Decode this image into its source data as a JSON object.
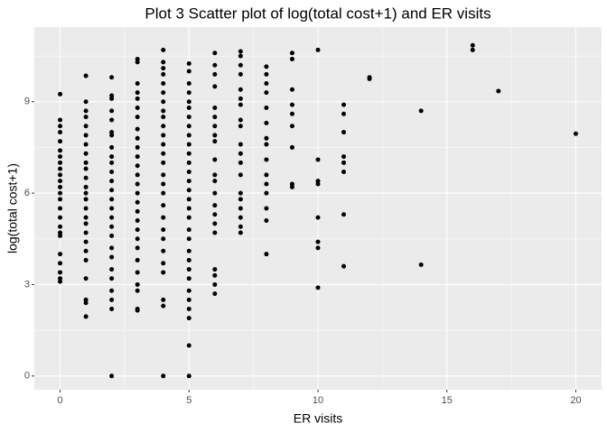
{
  "chart_data": {
    "type": "scatter",
    "title": "Plot 3  Scatter plot of log(total cost+1) and ER visits",
    "x_label": "ER visits",
    "y_label": "log(total cost+1)",
    "color": "#000000",
    "panel_color": "#EBEBEB",
    "grid": true,
    "xlim": [
      -1,
      21
    ],
    "ylim": [
      -0.45,
      11.45
    ],
    "xticks": [
      0,
      5,
      10,
      15,
      20
    ],
    "yticks": [
      0,
      3,
      6,
      9
    ],
    "x_minor_ticks": [
      2.5,
      7.5,
      12.5,
      17.5
    ],
    "y_minor_ticks": [
      1.5,
      4.5,
      7.5,
      10.5
    ],
    "x": [
      0,
      0,
      0,
      0,
      0,
      0,
      0,
      0,
      0,
      0,
      0,
      0,
      0,
      0,
      0,
      0,
      0,
      0,
      0,
      0,
      0,
      0,
      0,
      0,
      1,
      1,
      1,
      1,
      1,
      1,
      1,
      1,
      1,
      1,
      1,
      1,
      1,
      1,
      1,
      1,
      1,
      1,
      1,
      1,
      1,
      1,
      1,
      1,
      1,
      2,
      2,
      2,
      2,
      2,
      2,
      2,
      2,
      2,
      2,
      2,
      2,
      2,
      2,
      2,
      2,
      2,
      2,
      2,
      2,
      2,
      2,
      2,
      2,
      2,
      2,
      3,
      3,
      3,
      3,
      3,
      3,
      3,
      3,
      3,
      3,
      3,
      3,
      3,
      3,
      3,
      3,
      3,
      3,
      3,
      3,
      3,
      3,
      3,
      3,
      3,
      3,
      3,
      4,
      4,
      4,
      4,
      4,
      4,
      4,
      4,
      4,
      4,
      4,
      4,
      4,
      4,
      4,
      4,
      4,
      4,
      4,
      4,
      4,
      4,
      4,
      4,
      4,
      4,
      4,
      5,
      5,
      5,
      5,
      5,
      5,
      5,
      5,
      5,
      5,
      5,
      5,
      5,
      5,
      5,
      5,
      5,
      5,
      5,
      5,
      5,
      5,
      5,
      5,
      5,
      5,
      5,
      5,
      5,
      5,
      6,
      6,
      6,
      6,
      6,
      6,
      6,
      6,
      6,
      6,
      6,
      6,
      6,
      6,
      6,
      6,
      6,
      6,
      6,
      6,
      6,
      7,
      7,
      7,
      7,
      7,
      7,
      7,
      7,
      7,
      7,
      7,
      7,
      7,
      7,
      7,
      7,
      7,
      7,
      7,
      8,
      8,
      8,
      8,
      8,
      8,
      8,
      8,
      8,
      8,
      8,
      8,
      8,
      8,
      8,
      9,
      9,
      9,
      9,
      9,
      9,
      9,
      9,
      9,
      10,
      10,
      10,
      10,
      10,
      10,
      10,
      10,
      11,
      11,
      11,
      11,
      11,
      11,
      11,
      11,
      12,
      12,
      14,
      14,
      16,
      16,
      17,
      20
    ],
    "values": [
      9.25,
      8.4,
      8.2,
      8.0,
      7.7,
      7.4,
      7.2,
      7.0,
      6.8,
      6.6,
      6.4,
      6.2,
      6.0,
      5.8,
      5.5,
      5.2,
      4.9,
      4.7,
      4.6,
      4.0,
      3.7,
      3.4,
      3.2,
      3.1,
      9.85,
      9.0,
      8.7,
      8.5,
      8.2,
      7.9,
      7.6,
      7.3,
      7.0,
      6.8,
      6.5,
      6.2,
      6.0,
      5.8,
      5.5,
      5.2,
      5.0,
      4.7,
      4.4,
      4.1,
      3.8,
      3.2,
      2.5,
      2.4,
      1.95,
      9.8,
      9.2,
      9.1,
      8.7,
      8.4,
      8.0,
      7.9,
      7.5,
      7.2,
      7.0,
      6.7,
      6.4,
      6.1,
      5.8,
      5.5,
      5.2,
      4.9,
      4.6,
      4.2,
      3.9,
      3.5,
      3.2,
      2.8,
      2.5,
      2.2,
      0,
      10.4,
      10.3,
      9.6,
      9.3,
      9.1,
      8.8,
      8.5,
      8.1,
      7.8,
      7.5,
      7.2,
      6.9,
      6.6,
      6.3,
      6.0,
      5.7,
      5.4,
      5.1,
      4.8,
      4.5,
      4.2,
      3.8,
      3.4,
      3.0,
      2.8,
      2.2,
      2.15,
      10.7,
      10.3,
      10.1,
      9.9,
      9.6,
      9.3,
      9.0,
      8.7,
      8.5,
      8.2,
      7.9,
      7.6,
      7.3,
      7.0,
      6.6,
      6.3,
      6.0,
      5.6,
      5.2,
      4.8,
      4.5,
      4.1,
      3.7,
      3.4,
      2.5,
      2.3,
      0,
      10.25,
      10.0,
      9.6,
      9.3,
      9.0,
      8.8,
      8.5,
      8.2,
      7.9,
      7.6,
      7.3,
      7.0,
      6.7,
      6.4,
      6.1,
      5.8,
      5.5,
      5.2,
      4.8,
      4.5,
      4.1,
      3.8,
      3.5,
      3.2,
      2.8,
      2.5,
      2.2,
      1.9,
      1.0,
      0,
      10.6,
      10.2,
      9.9,
      9.5,
      8.8,
      8.5,
      8.2,
      7.9,
      7.7,
      7.1,
      6.6,
      6.4,
      6.0,
      5.6,
      5.3,
      5.0,
      4.7,
      3.5,
      3.3,
      3.0,
      2.7,
      10.65,
      10.5,
      10.2,
      9.9,
      9.4,
      9.1,
      8.9,
      8.4,
      8.2,
      7.6,
      7.3,
      7.0,
      6.6,
      6.0,
      5.8,
      5.5,
      5.2,
      4.9,
      4.7,
      10.15,
      9.9,
      9.6,
      9.3,
      8.8,
      8.3,
      7.8,
      7.6,
      7.1,
      6.6,
      6.3,
      6.0,
      5.5,
      5.1,
      4.0,
      10.6,
      10.4,
      9.4,
      8.9,
      8.6,
      8.2,
      7.5,
      6.3,
      6.2,
      10.7,
      7.1,
      6.4,
      6.3,
      5.2,
      4.4,
      4.2,
      2.9,
      8.9,
      8.6,
      8.0,
      7.2,
      7.0,
      6.7,
      5.3,
      3.6,
      9.8,
      9.75,
      8.7,
      3.65,
      10.85,
      10.7,
      9.35,
      7.95
    ]
  }
}
